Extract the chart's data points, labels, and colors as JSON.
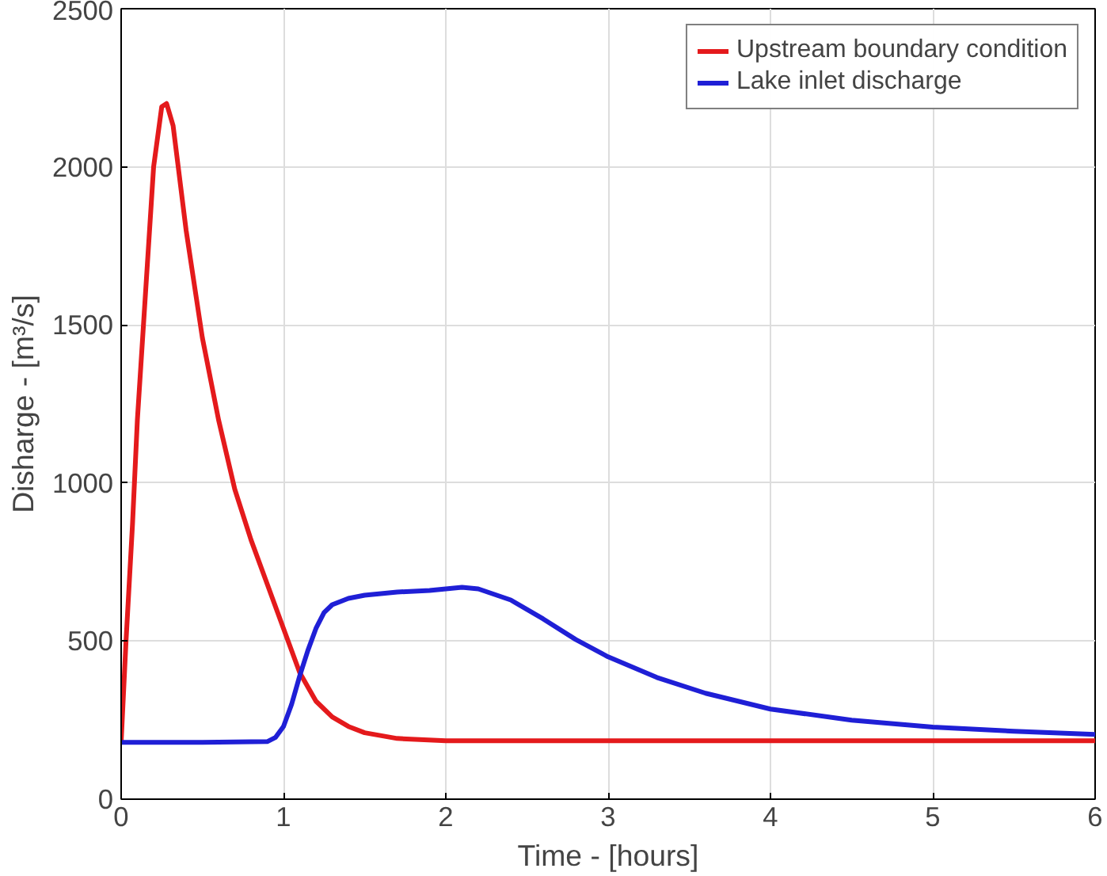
{
  "chart_data": {
    "type": "line",
    "xlabel": "Time - [hours]",
    "ylabel": "Disharge - [m³/s]",
    "xlim": [
      0,
      6
    ],
    "ylim": [
      0,
      2500
    ],
    "xticks": [
      0,
      1,
      2,
      3,
      4,
      5,
      6
    ],
    "yticks": [
      0,
      500,
      1000,
      1500,
      2000,
      2500
    ],
    "grid": true,
    "legend": "top right",
    "line_style": "solid",
    "marker": "none",
    "series": [
      {
        "name": "Upstream boundary condition",
        "color": "#e41a1c",
        "x": [
          0,
          0.03,
          0.07,
          0.1,
          0.15,
          0.2,
          0.25,
          0.28,
          0.32,
          0.4,
          0.5,
          0.6,
          0.7,
          0.8,
          0.9,
          1.0,
          1.1,
          1.2,
          1.3,
          1.4,
          1.5,
          1.7,
          2.0,
          3,
          4,
          5,
          6
        ],
        "values": [
          180,
          500,
          870,
          1200,
          1600,
          2000,
          2190,
          2200,
          2130,
          1800,
          1460,
          1200,
          980,
          820,
          680,
          540,
          400,
          310,
          260,
          230,
          210,
          192,
          185,
          185,
          185,
          185,
          185
        ]
      },
      {
        "name": "Lake inlet discharge",
        "color": "#1f1fd6",
        "x": [
          0,
          0.5,
          0.9,
          0.95,
          1.0,
          1.05,
          1.1,
          1.15,
          1.2,
          1.25,
          1.3,
          1.4,
          1.5,
          1.7,
          1.9,
          2.1,
          2.2,
          2.4,
          2.6,
          2.8,
          3.0,
          3.3,
          3.6,
          4.0,
          4.5,
          5.0,
          5.5,
          6.0
        ],
        "values": [
          180,
          180,
          182,
          195,
          230,
          300,
          390,
          470,
          540,
          590,
          615,
          635,
          645,
          655,
          660,
          670,
          665,
          630,
          570,
          505,
          450,
          385,
          335,
          285,
          250,
          228,
          215,
          205
        ]
      }
    ]
  }
}
